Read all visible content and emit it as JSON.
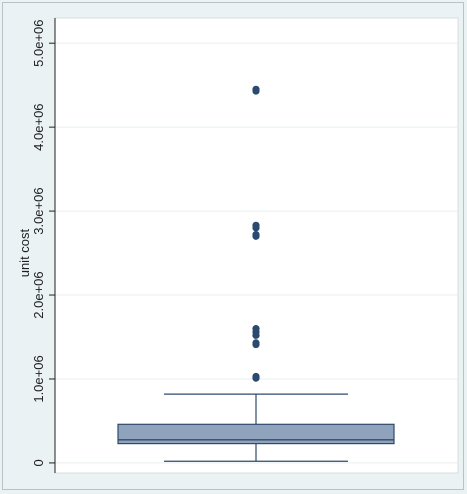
{
  "chart_data": {
    "type": "box",
    "title": "",
    "xlabel": "",
    "ylabel": "unit cost",
    "ylim": [
      -120000,
      5300000
    ],
    "y_ticks": [
      0,
      1000000,
      2000000,
      3000000,
      4000000,
      5000000
    ],
    "y_tick_labels": [
      "0",
      "1.0e+06",
      "2.0e+06",
      "3.0e+06",
      "4.0e+06",
      "5.0e+06"
    ],
    "grid": true,
    "legend": "none",
    "box": {
      "whisker_low": 20000,
      "q1": 230000,
      "median": 275000,
      "q3": 460000,
      "whisker_high": 820000
    },
    "outliers": [
      1010000,
      1030000,
      1410000,
      1430000,
      1520000,
      1560000,
      1600000,
      2700000,
      2720000,
      2800000,
      2830000,
      4430000,
      4450000
    ],
    "colors": {
      "box_fill": "#8fa3bd",
      "box_line": "#2f4a6b",
      "outlier": "#2b4a70",
      "grid": "#ffffff",
      "plot_bg": "#ffffff",
      "background": "#eaf2f3"
    }
  }
}
